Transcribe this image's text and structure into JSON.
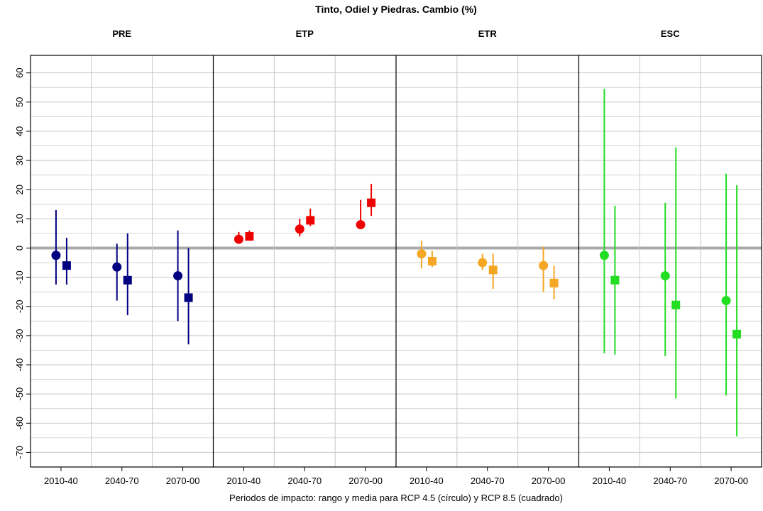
{
  "chart_data": {
    "type": "range-dot",
    "title": "Tinto, Odiel y Piedras. Cambio (%)",
    "x_label": "Periodos de impacto: rango y media para RCP 4.5 (círculo) y RCP 8.5 (cuadrado)",
    "ylim": [
      -75,
      66
    ],
    "yticks": [
      -70,
      -60,
      -50,
      -40,
      -30,
      -20,
      -10,
      0,
      10,
      20,
      30,
      40,
      50,
      60
    ],
    "minor_gridlines": [
      -65,
      -55,
      -45,
      -35,
      -25,
      -15,
      -5,
      5,
      15,
      25,
      35,
      45,
      55
    ],
    "reference_line": 0,
    "panels": [
      {
        "name": "PRE",
        "color": "#000080",
        "categories": [
          "2010-40",
          "2040-70",
          "2070-00"
        ],
        "series": [
          {
            "marker": "circle",
            "values": [
              -2.5,
              -6.5,
              -9.5
            ],
            "min": [
              -12.5,
              -18,
              -25
            ],
            "max": [
              13,
              1.5,
              6
            ]
          },
          {
            "marker": "square",
            "values": [
              -6,
              -11,
              -17
            ],
            "min": [
              -12.5,
              -23,
              -33
            ],
            "max": [
              3.5,
              5,
              0
            ]
          }
        ]
      },
      {
        "name": "ETP",
        "color": "#ee0000",
        "categories": [
          "2010-40",
          "2040-70",
          "2070-00"
        ],
        "series": [
          {
            "marker": "circle",
            "values": [
              3,
              6.5,
              8
            ],
            "min": [
              1.5,
              4,
              6.5
            ],
            "max": [
              5.5,
              10,
              16.5
            ]
          },
          {
            "marker": "square",
            "values": [
              4,
              9.5,
              15.5
            ],
            "min": [
              2.5,
              7.5,
              11
            ],
            "max": [
              6,
              13.5,
              22
            ]
          }
        ]
      },
      {
        "name": "ETR",
        "color": "#f5a623",
        "categories": [
          "2010-40",
          "2040-70",
          "2070-00"
        ],
        "series": [
          {
            "marker": "circle",
            "values": [
              -2,
              -5,
              -6
            ],
            "min": [
              -7,
              -7.5,
              -15
            ],
            "max": [
              2.5,
              -2,
              0.5
            ]
          },
          {
            "marker": "square",
            "values": [
              -4.5,
              -7.5,
              -12
            ],
            "min": [
              -6.5,
              -14,
              -17.5
            ],
            "max": [
              -1,
              -2,
              -6
            ]
          }
        ]
      },
      {
        "name": "ESC",
        "color": "#22dd22",
        "categories": [
          "2010-40",
          "2040-70",
          "2070-00"
        ],
        "series": [
          {
            "marker": "circle",
            "values": [
              -2.5,
              -9.5,
              -18
            ],
            "min": [
              -36,
              -37,
              -50.5
            ],
            "max": [
              54.5,
              15.5,
              25.5
            ]
          },
          {
            "marker": "square",
            "values": [
              -11,
              -19.5,
              -29.5
            ],
            "min": [
              -36.5,
              -51.5,
              -64.5
            ],
            "max": [
              14.5,
              34.5,
              21.5
            ]
          }
        ]
      }
    ]
  }
}
